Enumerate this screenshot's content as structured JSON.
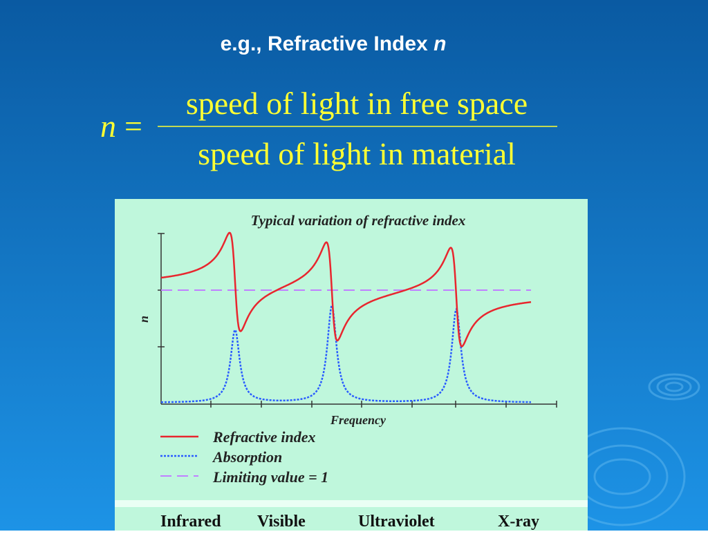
{
  "title": "e.g., Refractive Index",
  "title_var": "n",
  "formula": {
    "lhs": "n",
    "equals": "=",
    "numerator": "speed of light in free space",
    "denominator": "speed of light in material"
  },
  "figure": {
    "title": "Typical variation of refractive index",
    "y_label": "n",
    "x_label": "Frequency",
    "legend": [
      "Refractive index",
      "Absorption",
      "Limiting value = 1"
    ],
    "bands": [
      "Infrared",
      "Visible",
      "Ultraviolet",
      "X-ray"
    ]
  }
}
